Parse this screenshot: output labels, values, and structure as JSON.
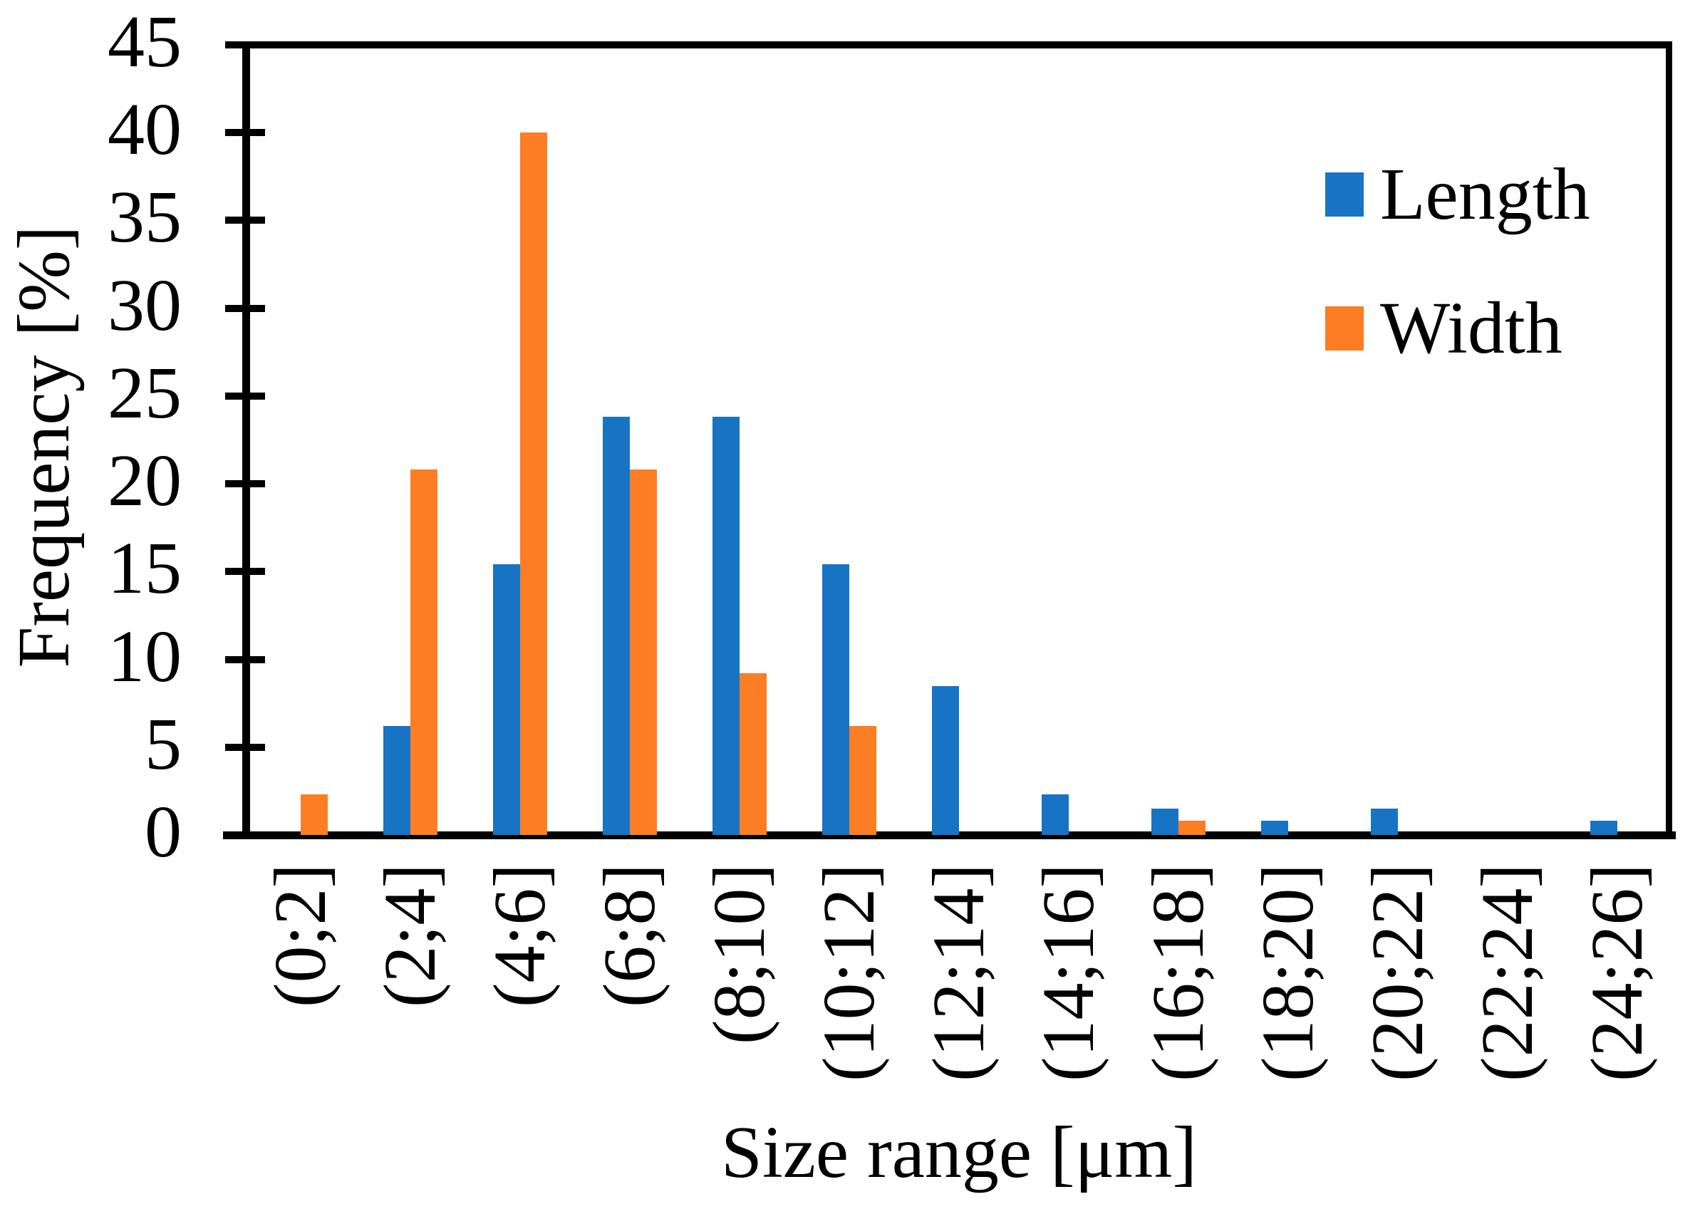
{
  "chart_data": {
    "type": "bar",
    "title": "",
    "xlabel": "Size range [μm]",
    "ylabel": "Frequency [%]",
    "ylim": [
      0,
      45
    ],
    "yticks": [
      0,
      5,
      10,
      15,
      20,
      25,
      30,
      35,
      40,
      45
    ],
    "grid": false,
    "legend_position": "upper-right-inside",
    "categories": [
      "(0;2]",
      "(2;4]",
      "(4;6]",
      "(6;8]",
      "(8;10]",
      "(10;12]",
      "(12;14]",
      "(14;16]",
      "(16;18]",
      "(18;20]",
      "(20;22]",
      "(22;24]",
      "(24;26]"
    ],
    "series": [
      {
        "name": "Length",
        "color": "#1774C4",
        "values": [
          0,
          6.2,
          15.4,
          23.8,
          23.8,
          15.4,
          8.5,
          2.3,
          1.5,
          0.8,
          1.5,
          0,
          0.8
        ]
      },
      {
        "name": "Width",
        "color": "#FC7D23",
        "values": [
          2.3,
          20.8,
          40,
          20.8,
          9.2,
          6.2,
          0,
          0,
          0.8,
          0,
          0,
          0,
          0
        ]
      }
    ],
    "axis_color": "#000000",
    "background_color": "#FFFFFF"
  }
}
